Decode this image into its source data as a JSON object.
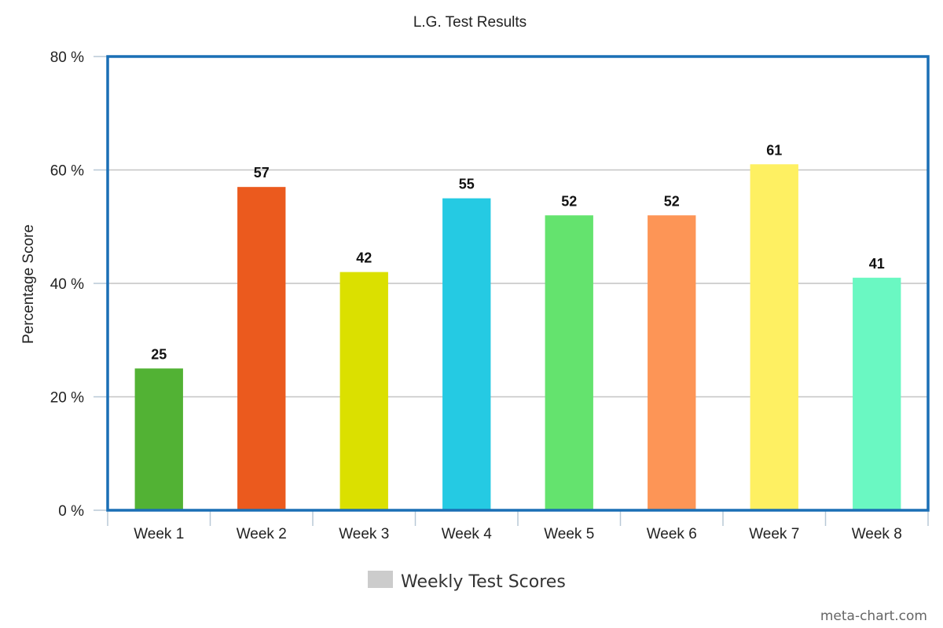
{
  "chart_data": {
    "type": "bar",
    "title": "L.G. Test Results",
    "ylabel": "Percentage Score",
    "xlabel": "",
    "ylim": [
      0,
      80
    ],
    "yticks": [
      0,
      20,
      40,
      60,
      80
    ],
    "ytick_labels": [
      "0 %",
      "20 %",
      "40 %",
      "60 %",
      "80 %"
    ],
    "categories": [
      "Week 1",
      "Week 2",
      "Week 3",
      "Week 4",
      "Week 5",
      "Week 6",
      "Week 7",
      "Week 8"
    ],
    "series": [
      {
        "name": "Weekly Test Scores",
        "values": [
          25,
          57,
          42,
          55,
          52,
          52,
          61,
          41
        ],
        "colors": [
          "#52b234",
          "#eb5a1e",
          "#dbe000",
          "#25cae3",
          "#64e36e",
          "#fd9556",
          "#fef062",
          "#6af8c2"
        ]
      }
    ],
    "value_labels": [
      "25",
      "57",
      "42",
      "55",
      "52",
      "52",
      "61",
      "41"
    ],
    "legend": {
      "position": "bottom",
      "swatch_color": "#cccccc"
    },
    "grid": true,
    "frame_color": "#1a6fb5",
    "grid_color": "#c4c4c4"
  },
  "credit": "meta-chart.com"
}
